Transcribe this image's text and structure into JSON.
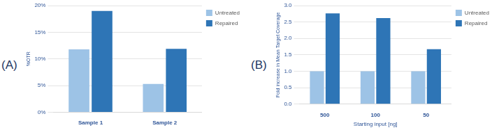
{
  "chart_data": [
    {
      "type": "bar",
      "title": "(A)",
      "categories": [
        "Sample 1",
        "Sample 2"
      ],
      "series": [
        {
          "name": "Untreated",
          "color": "#9dc3e6",
          "values": [
            11.8,
            5.3
          ]
        },
        {
          "name": "Repaired",
          "color": "#2e75b6",
          "values": [
            19.0,
            11.9
          ]
        }
      ],
      "y_label": "%OTR",
      "ylim": [
        0,
        20
      ],
      "yticks": [
        {
          "value": 0,
          "label": "0%"
        },
        {
          "value": 5,
          "label": "5%"
        },
        {
          "value": 10,
          "label": "10%"
        },
        {
          "value": 15,
          "label": "15%"
        },
        {
          "value": 20,
          "label": "20%"
        }
      ],
      "grid": true,
      "legend": "upper right"
    },
    {
      "type": "bar",
      "title": "(B)",
      "categories": [
        "500",
        "100",
        "50"
      ],
      "series": [
        {
          "name": "Untreated",
          "color": "#9dc3e6",
          "values": [
            1.0,
            1.0,
            1.0
          ]
        },
        {
          "name": "Repaired",
          "color": "#2e75b6",
          "values": [
            2.76,
            2.62,
            1.67
          ]
        }
      ],
      "x_label": "Starting input [ng]",
      "y_label": "Fold increase in Mean Target Coverage",
      "ylim": [
        0,
        3
      ],
      "yticks": [
        {
          "value": 0,
          "label": "0.0"
        },
        0.5,
        {
          "value": 1,
          "label": "1.0"
        },
        1.5,
        {
          "value": 2,
          "label": "2.0"
        },
        2.5,
        {
          "value": 3,
          "label": "3.0"
        }
      ],
      "grid": true,
      "legend": "upper right"
    }
  ]
}
